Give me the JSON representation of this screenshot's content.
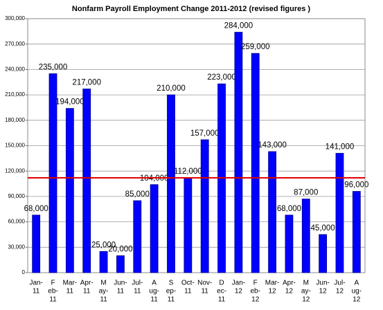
{
  "chart_data": {
    "type": "bar",
    "title": "Nonfarm Payroll Employment Change 2011-2012 (revised figures )",
    "categories": [
      [
        "Jan-",
        "11"
      ],
      [
        "F",
        "eb-",
        "11"
      ],
      [
        "Mar-",
        "11"
      ],
      [
        "Apr-",
        "11"
      ],
      [
        "M",
        "ay-",
        "11"
      ],
      [
        "Jun-",
        "11"
      ],
      [
        "Jul-",
        "11"
      ],
      [
        "A",
        "ug-",
        "11"
      ],
      [
        "S",
        "ep-",
        "11"
      ],
      [
        "Oct-",
        "11"
      ],
      [
        "Nov-",
        "11"
      ],
      [
        "D",
        "ec-",
        "11"
      ],
      [
        "Jan-",
        "12"
      ],
      [
        "F",
        "eb-",
        "12"
      ],
      [
        "Mar-",
        "12"
      ],
      [
        "Apr-",
        "12"
      ],
      [
        "M",
        "ay-",
        "12"
      ],
      [
        "Jun-",
        "12"
      ],
      [
        "Jul-",
        "12"
      ],
      [
        "A",
        "ug-",
        "12"
      ]
    ],
    "values": [
      68000,
      235000,
      194000,
      217000,
      25000,
      20000,
      85000,
      104000,
      210000,
      112000,
      157000,
      223000,
      284000,
      259000,
      143000,
      68000,
      87000,
      45000,
      141000,
      96000
    ],
    "value_labels": [
      "68,000",
      "235,000",
      "194,000",
      "217,000",
      "25,000",
      "20,000",
      "85,000",
      "104,000",
      "210,000",
      "112,000",
      "157,000",
      "223,000",
      "284,000",
      "259,000",
      "143,000",
      "68,000",
      "87,000",
      "45,000",
      "141,000",
      "96,000"
    ],
    "color": "#0000ff",
    "reference_line": {
      "value": 112000,
      "color": "#e00000"
    },
    "ylim": [
      0,
      300000
    ],
    "yticks": [
      0,
      {
        "value": 30000,
        "label": "30,000"
      },
      {
        "value": 60000,
        "label": "60,000"
      },
      {
        "value": 90000,
        "label": "90,000"
      },
      {
        "value": 120000,
        "label": "120,000"
      },
      {
        "value": 150000,
        "label": "150,000"
      },
      {
        "value": 180000,
        "label": "180,000"
      },
      {
        "value": 210000,
        "label": "210,000"
      },
      {
        "value": 240000,
        "label": "240,000"
      },
      {
        "value": 270000,
        "label": "270,000"
      },
      {
        "value": 300000,
        "label": "300,000"
      }
    ],
    "grid": true
  }
}
